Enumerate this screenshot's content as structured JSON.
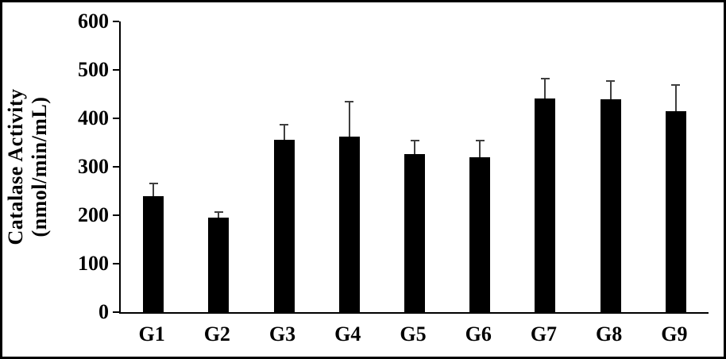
{
  "chart_data": {
    "type": "bar",
    "title": "",
    "categories": [
      "G1",
      "G2",
      "G3",
      "G4",
      "G5",
      "G6",
      "G7",
      "G8",
      "G9"
    ],
    "values": [
      240,
      195,
      356,
      363,
      327,
      320,
      441,
      439,
      414
    ],
    "errors": [
      27,
      13,
      32,
      73,
      28,
      36,
      42,
      40,
      57
    ],
    "ylabel_line1": "Catalase Activity",
    "ylabel_line2": "(nmol/min/mL)",
    "yticks": [
      0,
      100,
      200,
      300,
      400,
      500,
      600
    ],
    "ylim": [
      0,
      600
    ],
    "xlabel": "",
    "grid": false,
    "legend": false,
    "bar_color": "#000000",
    "error_bar_color": "#3f3f3f",
    "frame_border_color": "#000000",
    "background_color": "#ffffff"
  }
}
